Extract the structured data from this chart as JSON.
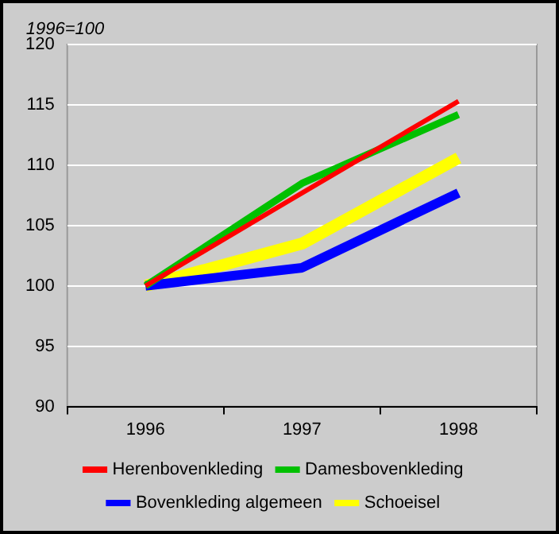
{
  "chart_data": {
    "type": "line",
    "ylabel": "1996=100",
    "categories": [
      "1996",
      "1997",
      "1998"
    ],
    "series": [
      {
        "name": "Herenbovenkleding",
        "color": "#ff0000",
        "values": [
          100,
          107.7,
          115.3
        ]
      },
      {
        "name": "Damesbovenkleding",
        "color": "#00c000",
        "values": [
          100,
          108.5,
          114.2
        ]
      },
      {
        "name": "Bovenkleding algemeen",
        "color": "#0000ff",
        "values": [
          100,
          101.5,
          107.7
        ]
      },
      {
        "name": "Schoeisel",
        "color": "#ffff00",
        "values": [
          100,
          103.5,
          110.6
        ]
      }
    ],
    "ylim": [
      90,
      120
    ],
    "yticks": [
      90,
      95,
      100,
      105,
      110,
      115,
      120
    ],
    "grid": "y",
    "legend": "bottom",
    "marker": "none",
    "line_style": "solid"
  }
}
